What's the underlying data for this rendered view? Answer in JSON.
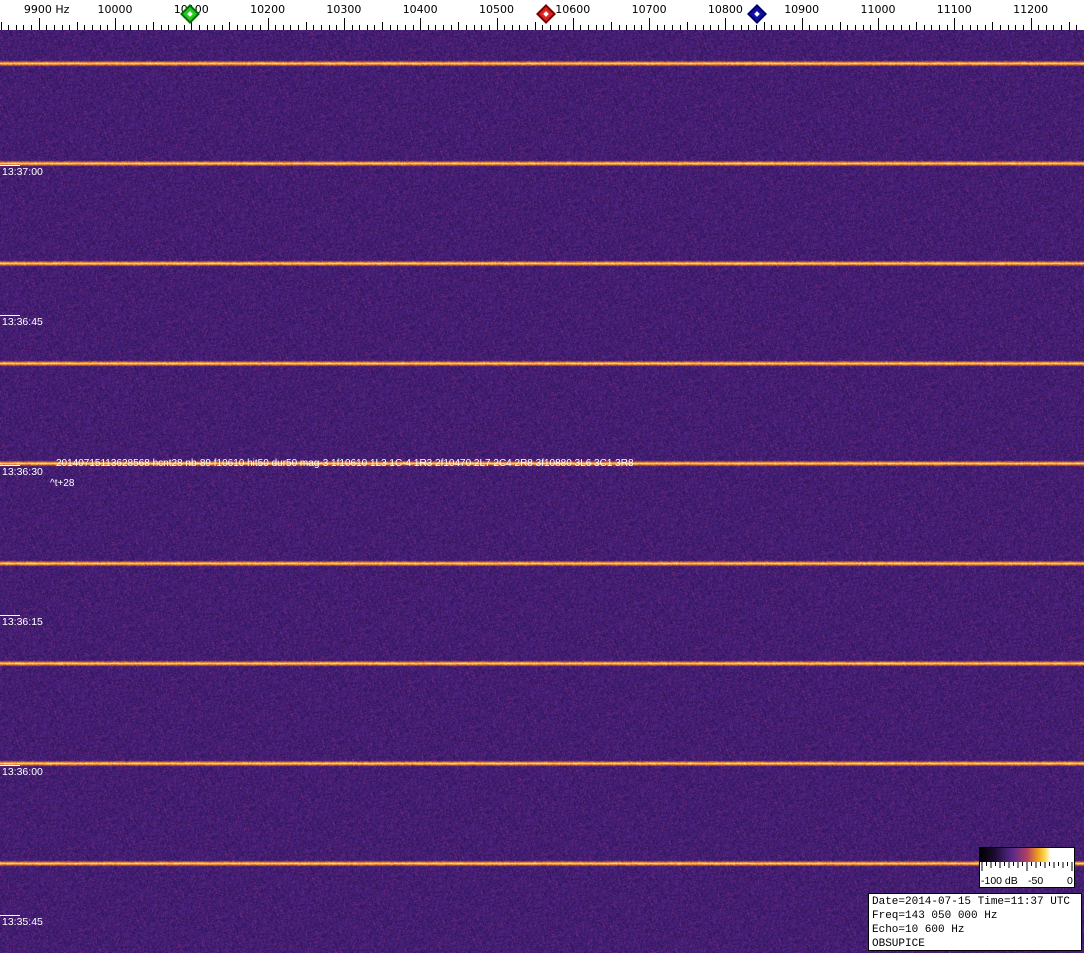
{
  "chart_data": {
    "type": "heatmap",
    "title": "",
    "x_unit": "Hz",
    "x_tick_labels": [
      "9900 Hz",
      "10000",
      "10100",
      "10200",
      "10300",
      "10400",
      "10500",
      "10600",
      "10700",
      "10800",
      "10900",
      "11000",
      "11100",
      "11200"
    ],
    "x_ticks": [
      9900,
      10000,
      10100,
      10200,
      10300,
      10400,
      10500,
      10600,
      10700,
      10800,
      10900,
      11000,
      11100,
      11200
    ],
    "xlim": [
      9850,
      11270
    ],
    "y_tick_labels": [
      "13:37:00",
      "13:36:45",
      "13:36:30",
      "13:36:15",
      "13:36:00",
      "13:35:45"
    ],
    "y_direction": "time decreasing downward",
    "markers": [
      {
        "freq": 10100,
        "color": "#22cc22"
      },
      {
        "freq": 10566,
        "color": "#dd2222"
      },
      {
        "freq": 10843,
        "color": "#1111aa"
      }
    ],
    "carrier_pulses": "horizontal broadband lines every 10 s",
    "annotations": [
      "20140715113628568 hcnt28 nb-89 f10610 hit50 dur50 mag-3 1f10610 1L3 1C-4 1R3 2f10470 2L7 2C4 2R8 3f10880 3L6 3C1 3R8",
      "^t+28"
    ],
    "colorbar": {
      "labels": [
        "-100 dB",
        "-50",
        "0"
      ],
      "range": [
        -100,
        0
      ],
      "unit": "dB"
    }
  },
  "info": {
    "line1": "Date=2014-07-15 Time=11:37 UTC",
    "line2": "Freq=143 050 000 Hz",
    "line3": "Echo=10 600 Hz",
    "line4": "OBSUPICE"
  }
}
